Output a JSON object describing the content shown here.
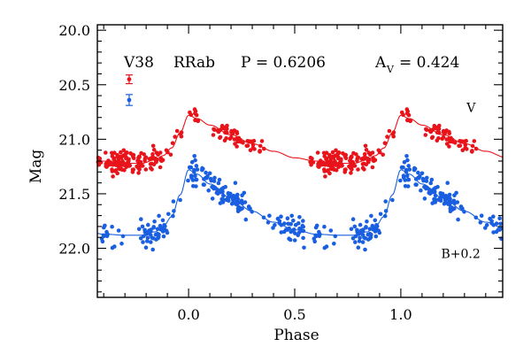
{
  "chart_data": {
    "type": "scatter",
    "title_parts": {
      "star": "V38",
      "class": "RRab",
      "period": "P = 0.6206",
      "amp_sym": "A",
      "amp_sub": "V",
      "amp_val": "= 0.424"
    },
    "xlabel": "Phase",
    "ylabel": "Mag",
    "xlim": [
      -0.43,
      1.48
    ],
    "ylim": [
      22.45,
      19.95
    ],
    "y_inverted": true,
    "x_major_ticks": [
      0.0,
      0.5,
      1.0
    ],
    "x_major_labels": [
      "0.0",
      "0.5",
      "1.0"
    ],
    "x_minor_step": 0.1,
    "y_major_ticks": [
      20.0,
      20.5,
      21.0,
      21.5,
      22.0
    ],
    "y_major_labels": [
      "20.0",
      "20.5",
      "21.0",
      "21.5",
      "22.0"
    ],
    "y_minor_step": 0.1,
    "grid": false,
    "series": [
      {
        "name": "V",
        "color": "#e8141b",
        "offset": 0.0,
        "mean_mag": 21.02,
        "scatter": 0.045,
        "curve_phase": [
          0.0,
          0.04,
          0.1,
          0.2,
          0.3,
          0.4,
          0.5,
          0.6,
          0.7,
          0.78,
          0.84,
          0.88,
          0.92,
          0.96,
          1.0
        ],
        "curve_delta": [
          -0.24,
          -0.21,
          -0.15,
          -0.06,
          0.02,
          0.09,
          0.15,
          0.18,
          0.2,
          0.2,
          0.17,
          0.13,
          0.06,
          -0.08,
          -0.24
        ],
        "n_points": 210
      },
      {
        "name": "B+0.2",
        "color": "#1a5fe0",
        "offset": 0.0,
        "mean_mag": 21.61,
        "scatter": 0.06,
        "curve_phase": [
          0.0,
          0.04,
          0.1,
          0.2,
          0.3,
          0.4,
          0.5,
          0.6,
          0.7,
          0.78,
          0.84,
          0.88,
          0.92,
          0.96,
          1.0
        ],
        "curve_delta": [
          -0.33,
          -0.29,
          -0.2,
          -0.07,
          0.05,
          0.15,
          0.22,
          0.26,
          0.27,
          0.27,
          0.24,
          0.19,
          0.1,
          -0.1,
          -0.33
        ],
        "n_points": 210
      }
    ],
    "errorbars": [
      {
        "color": "#e8141b",
        "x": -0.28,
        "y": 20.45,
        "err": 0.04
      },
      {
        "color": "#1a5fe0",
        "x": -0.28,
        "y": 20.64,
        "err": 0.05
      }
    ],
    "series_labels": [
      {
        "text": "V",
        "color": "#e8141b",
        "x": 1.31,
        "y": 20.75
      },
      {
        "text": "B+0.2",
        "color": "#1a5fe0",
        "x": 1.19,
        "y": 22.09
      }
    ]
  }
}
